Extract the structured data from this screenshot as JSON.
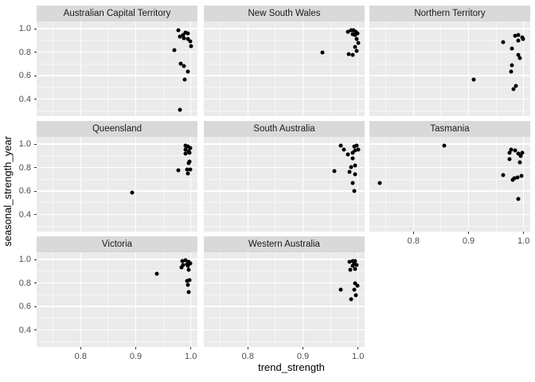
{
  "chart_data": {
    "type": "scatter",
    "title": "",
    "xlabel": "trend_strength",
    "ylabel": "seasonal_strength_year",
    "x_ticks": [
      0.8,
      0.9,
      1.0
    ],
    "x_tick_labels": [
      "0.8",
      "0.9",
      "1.0"
    ],
    "x_minor_ticks": [
      0.75,
      0.85,
      0.95
    ],
    "y_ticks": [
      1.0,
      0.8,
      0.6,
      0.4
    ],
    "y_tick_labels": [
      "1.0",
      "0.8",
      "0.6",
      "0.4"
    ],
    "y_minor_ticks": [
      0.9,
      0.7,
      0.5,
      0.3
    ],
    "xlim": [
      0.72,
      1.012
    ],
    "ylim": [
      0.255,
      1.062
    ],
    "grid": true,
    "legend": "none",
    "point_color": "#000000",
    "panel_bg": "#EBEBEB",
    "strip_bg": "#D9D9D9",
    "axis_text_color": "#4D4D4D",
    "facets": [
      {
        "label": "Australian Capital Territory",
        "points": [
          [
            0.978,
            0.99
          ],
          [
            0.99,
            0.968
          ],
          [
            0.995,
            0.957
          ],
          [
            0.986,
            0.946
          ],
          [
            0.98,
            0.93
          ],
          [
            0.988,
            0.921
          ],
          [
            0.994,
            0.91
          ],
          [
            0.999,
            0.89
          ],
          [
            1.0,
            0.853
          ],
          [
            0.97,
            0.82
          ],
          [
            0.982,
            0.7
          ],
          [
            0.987,
            0.684
          ],
          [
            0.994,
            0.635
          ],
          [
            0.989,
            0.568
          ],
          [
            0.98,
            0.31
          ]
        ]
      },
      {
        "label": "New South Wales",
        "points": [
          [
            0.981,
            0.975
          ],
          [
            0.987,
            0.985
          ],
          [
            0.992,
            0.99
          ],
          [
            0.996,
            0.975
          ],
          [
            0.999,
            0.96
          ],
          [
            0.99,
            0.955
          ],
          [
            0.994,
            0.945
          ],
          [
            0.998,
            0.914
          ],
          [
            1.0,
            0.88
          ],
          [
            0.995,
            0.847
          ],
          [
            0.998,
            0.813
          ],
          [
            0.991,
            0.779
          ],
          [
            0.983,
            0.784
          ],
          [
            0.936,
            0.795
          ]
        ]
      },
      {
        "label": "Northern Territory",
        "points": [
          [
            0.984,
            0.941
          ],
          [
            0.99,
            0.95
          ],
          [
            0.997,
            0.928
          ],
          [
            0.999,
            0.912
          ],
          [
            0.991,
            0.899
          ],
          [
            0.963,
            0.887
          ],
          [
            0.979,
            0.829
          ],
          [
            0.991,
            0.779
          ],
          [
            0.993,
            0.752
          ],
          [
            0.979,
            0.689
          ],
          [
            0.977,
            0.633
          ],
          [
            0.91,
            0.57
          ],
          [
            0.986,
            0.514
          ],
          [
            0.981,
            0.487
          ]
        ]
      },
      {
        "label": "Queensland",
        "points": [
          [
            0.99,
            0.989
          ],
          [
            0.995,
            0.978
          ],
          [
            0.999,
            0.966
          ],
          [
            0.99,
            0.951
          ],
          [
            0.996,
            0.937
          ],
          [
            0.99,
            0.917
          ],
          [
            0.997,
            0.923
          ],
          [
            0.998,
            0.853
          ],
          [
            0.996,
            0.838
          ],
          [
            0.993,
            0.787
          ],
          [
            0.999,
            0.786
          ],
          [
            0.995,
            0.752
          ],
          [
            0.977,
            0.775
          ],
          [
            0.894,
            0.59
          ]
        ]
      },
      {
        "label": "South Australia",
        "points": [
          [
            0.969,
            0.985
          ],
          [
            0.974,
            0.955
          ],
          [
            0.993,
            0.978
          ],
          [
            0.998,
            0.989
          ],
          [
            1.0,
            0.955
          ],
          [
            0.995,
            0.944
          ],
          [
            0.99,
            0.928
          ],
          [
            0.981,
            0.91
          ],
          [
            0.991,
            0.876
          ],
          [
            0.995,
            0.816
          ],
          [
            0.988,
            0.802
          ],
          [
            0.985,
            0.764
          ],
          [
            0.957,
            0.768
          ],
          [
            0.995,
            0.741
          ],
          [
            0.991,
            0.667
          ],
          [
            0.993,
            0.599
          ]
        ]
      },
      {
        "label": "Tasmania",
        "points": [
          [
            0.856,
            0.985
          ],
          [
            0.739,
            0.669
          ],
          [
            0.977,
            0.955
          ],
          [
            0.984,
            0.944
          ],
          [
            0.974,
            0.928
          ],
          [
            0.991,
            0.921
          ],
          [
            0.998,
            0.928
          ],
          [
            0.994,
            0.899
          ],
          [
            0.975,
            0.87
          ],
          [
            0.993,
            0.842
          ],
          [
            0.963,
            0.734
          ],
          [
            0.98,
            0.696
          ],
          [
            0.983,
            0.712
          ],
          [
            0.989,
            0.718
          ],
          [
            0.996,
            0.73
          ],
          [
            0.99,
            0.532
          ]
        ]
      },
      {
        "label": "Victoria",
        "points": [
          [
            0.985,
            0.989
          ],
          [
            0.99,
            0.993
          ],
          [
            0.996,
            0.982
          ],
          [
            0.999,
            0.966
          ],
          [
            0.993,
            0.959
          ],
          [
            0.986,
            0.955
          ],
          [
            0.995,
            0.944
          ],
          [
            0.983,
            0.932
          ],
          [
            0.996,
            0.91
          ],
          [
            0.938,
            0.88
          ],
          [
            0.993,
            0.82
          ],
          [
            0.998,
            0.824
          ],
          [
            0.994,
            0.786
          ],
          [
            0.996,
            0.723
          ]
        ]
      },
      {
        "label": "Western Australia",
        "points": [
          [
            0.99,
            0.989
          ],
          [
            0.995,
            0.985
          ],
          [
            0.985,
            0.978
          ],
          [
            0.993,
            0.966
          ],
          [
            0.998,
            0.955
          ],
          [
            0.991,
            0.944
          ],
          [
            0.986,
            0.914
          ],
          [
            0.994,
            0.921
          ],
          [
            0.995,
            0.797
          ],
          [
            0.999,
            0.779
          ],
          [
            0.993,
            0.741
          ],
          [
            0.969,
            0.741
          ],
          [
            0.996,
            0.696
          ],
          [
            0.988,
            0.662
          ]
        ]
      }
    ]
  }
}
